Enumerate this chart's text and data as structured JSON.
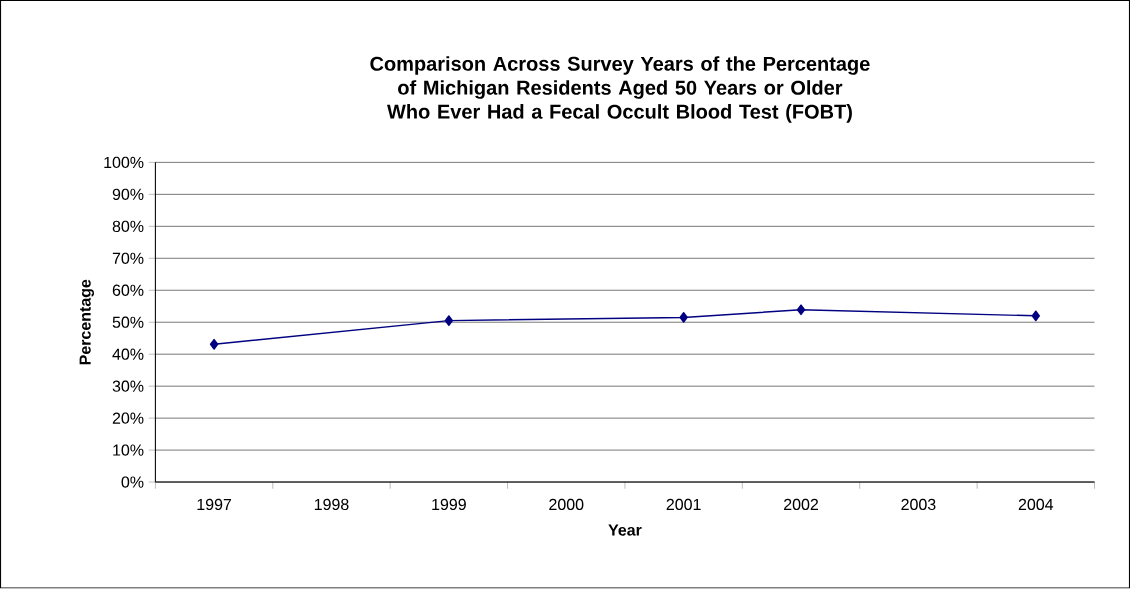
{
  "chart_data": {
    "type": "line",
    "title": "Comparison Across Survey Years of the Percentage of Michigan Residents Aged 50 Years or Older Who Ever Had a Fecal Occult Blood Test (FOBT)",
    "xlabel": "Year",
    "ylabel": "Percentage",
    "categories": [
      "1997",
      "1998",
      "1999",
      "2000",
      "2001",
      "2002",
      "2003",
      "2004"
    ],
    "series": [
      {
        "color": "#000080",
        "values": [
          43.1,
          null,
          50.5,
          null,
          51.5,
          53.9,
          null,
          52.0
        ]
      }
    ],
    "ylim": [
      0,
      100
    ],
    "yticks": [
      {
        "value": 0,
        "label": "0%"
      },
      {
        "value": 10,
        "label": "10%"
      },
      {
        "value": 20,
        "label": "20%"
      },
      {
        "value": 30,
        "label": "30%"
      },
      {
        "value": 40,
        "label": "40%"
      },
      {
        "value": 50,
        "label": "50%"
      },
      {
        "value": 60,
        "label": "60%"
      },
      {
        "value": 70,
        "label": "70%"
      },
      {
        "value": 80,
        "label": "80%"
      },
      {
        "value": 90,
        "label": "90%"
      },
      {
        "value": 100,
        "label": "100%"
      }
    ],
    "grid": "y",
    "marker": "diamond",
    "line_style": "solid"
  }
}
